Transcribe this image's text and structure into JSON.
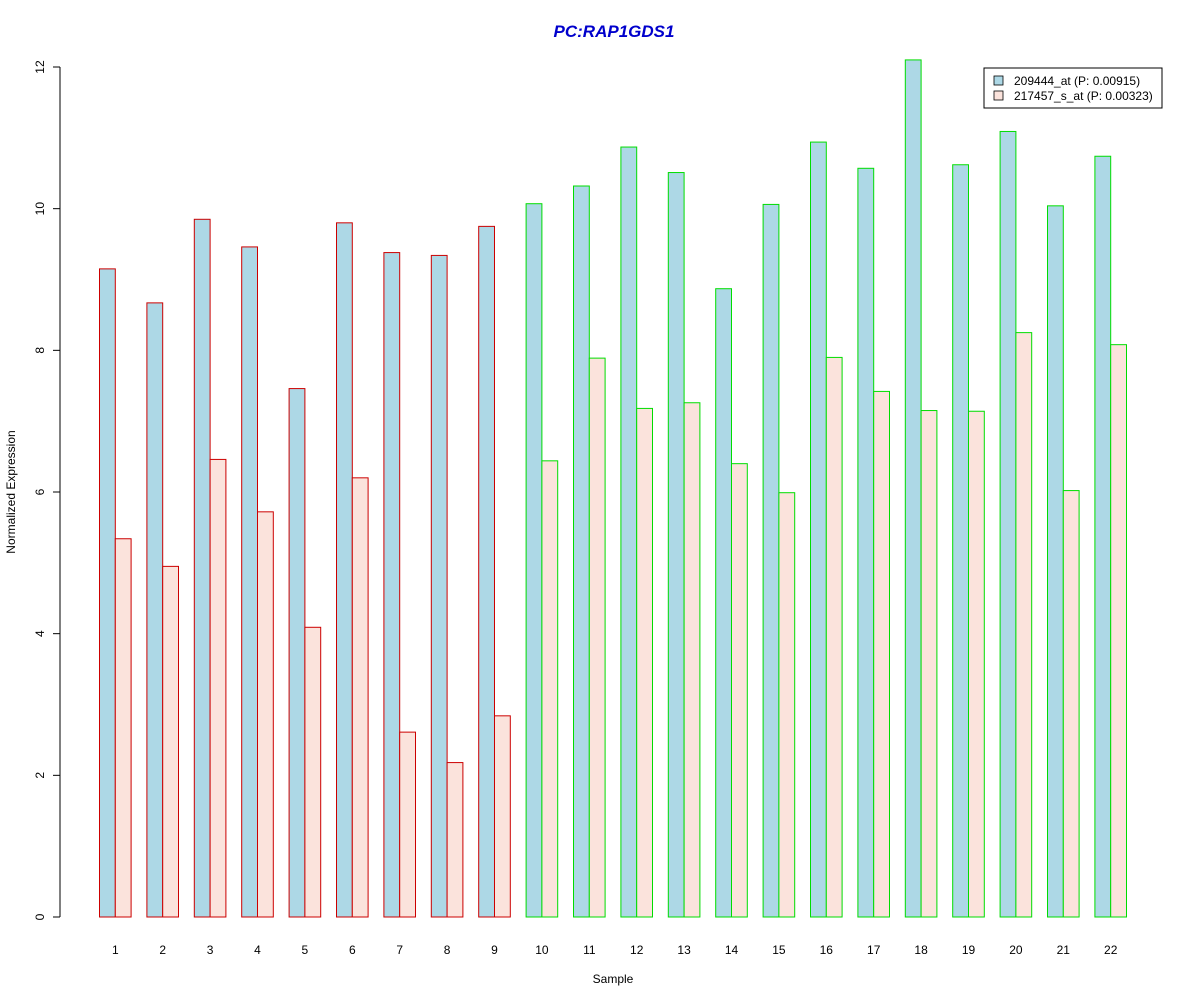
{
  "chart_data": {
    "type": "bar",
    "title": "PC:RAP1GDS1",
    "xlabel": "Sample",
    "ylabel": "Normalized Expression",
    "ylim": [
      0,
      12
    ],
    "yticks": [
      "0",
      "2",
      "4",
      "6",
      "8",
      "10",
      "12"
    ],
    "grid": false,
    "legend_position": "top-right",
    "categories": [
      "1",
      "2",
      "3",
      "4",
      "5",
      "6",
      "7",
      "8",
      "9",
      "10",
      "11",
      "12",
      "13",
      "14",
      "15",
      "16",
      "17",
      "18",
      "19",
      "20",
      "21",
      "22"
    ],
    "series": [
      {
        "name": "209444_at (P: 0.00915)",
        "fill": "#add8e6",
        "values": [
          9.15,
          8.67,
          9.85,
          9.46,
          7.46,
          9.8,
          9.38,
          9.34,
          9.75,
          10.07,
          10.32,
          10.87,
          10.51,
          8.87,
          10.06,
          10.94,
          10.57,
          12.1,
          10.62,
          11.09,
          10.04,
          10.74
        ]
      },
      {
        "name": "217457_s_at (P: 0.00323)",
        "fill": "#fbe3dc",
        "values": [
          5.34,
          4.95,
          6.46,
          5.72,
          4.09,
          6.2,
          2.61,
          2.18,
          2.84,
          6.44,
          7.89,
          7.18,
          7.26,
          6.4,
          5.99,
          7.9,
          7.42,
          7.15,
          7.14,
          8.25,
          6.02,
          8.08
        ]
      }
    ],
    "group_border_colors": [
      "#cc0000",
      "#cc0000",
      "#cc0000",
      "#cc0000",
      "#cc0000",
      "#cc0000",
      "#cc0000",
      "#cc0000",
      "#cc0000",
      "#00dd00",
      "#00dd00",
      "#00dd00",
      "#00dd00",
      "#00dd00",
      "#00dd00",
      "#00dd00",
      "#00dd00",
      "#00dd00",
      "#00dd00",
      "#00dd00",
      "#00dd00",
      "#00dd00"
    ],
    "title_color": "#0000cc"
  }
}
